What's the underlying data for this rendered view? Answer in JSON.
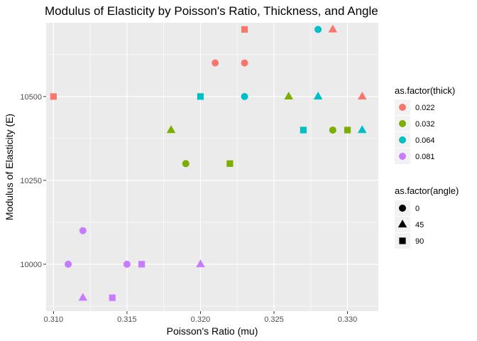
{
  "chart_data": {
    "type": "scatter",
    "title": "Modulus of Elasticity by Poisson's Ratio, Thickness, and Angle",
    "xlabel": "Poisson's Ratio (mu)",
    "ylabel": "Modulus of Elasticity (E)",
    "xlim": [
      0.3095,
      0.3321
    ],
    "ylim": [
      9860,
      10720
    ],
    "x_ticks": [
      0.31,
      0.315,
      0.32,
      0.325,
      0.33
    ],
    "x_tick_labels": [
      "0.310",
      "0.315",
      "0.320",
      "0.325",
      "0.330"
    ],
    "y_ticks": [
      10000,
      10250,
      10500
    ],
    "y_tick_labels": [
      "10000",
      "10250",
      "10500"
    ],
    "grid": true,
    "legend_placement": "right",
    "color_legend": {
      "title": "as.factor(thick)",
      "entries": [
        {
          "label": "0.022",
          "color": "#F8766D"
        },
        {
          "label": "0.032",
          "color": "#7CAE00"
        },
        {
          "label": "0.064",
          "color": "#00BFC4"
        },
        {
          "label": "0.081",
          "color": "#C77CFF"
        }
      ]
    },
    "shape_legend": {
      "title": "as.factor(angle)",
      "entries": [
        {
          "label": "0",
          "shape": "circle"
        },
        {
          "label": "45",
          "shape": "triangle"
        },
        {
          "label": "90",
          "shape": "square"
        }
      ]
    },
    "points": [
      {
        "x": 0.31,
        "y": 10500,
        "thick": "0.022",
        "angle": "90"
      },
      {
        "x": 0.321,
        "y": 10600,
        "thick": "0.022",
        "angle": "0"
      },
      {
        "x": 0.323,
        "y": 10600,
        "thick": "0.022",
        "angle": "0"
      },
      {
        "x": 0.323,
        "y": 10700,
        "thick": "0.022",
        "angle": "90"
      },
      {
        "x": 0.329,
        "y": 10700,
        "thick": "0.022",
        "angle": "45"
      },
      {
        "x": 0.331,
        "y": 10500,
        "thick": "0.022",
        "angle": "45"
      },
      {
        "x": 0.318,
        "y": 10400,
        "thick": "0.032",
        "angle": "45"
      },
      {
        "x": 0.319,
        "y": 10300,
        "thick": "0.032",
        "angle": "0"
      },
      {
        "x": 0.322,
        "y": 10300,
        "thick": "0.032",
        "angle": "90"
      },
      {
        "x": 0.326,
        "y": 10500,
        "thick": "0.032",
        "angle": "45"
      },
      {
        "x": 0.329,
        "y": 10400,
        "thick": "0.032",
        "angle": "0"
      },
      {
        "x": 0.33,
        "y": 10400,
        "thick": "0.032",
        "angle": "90"
      },
      {
        "x": 0.32,
        "y": 10500,
        "thick": "0.064",
        "angle": "90"
      },
      {
        "x": 0.323,
        "y": 10500,
        "thick": "0.064",
        "angle": "0"
      },
      {
        "x": 0.327,
        "y": 10400,
        "thick": "0.064",
        "angle": "90"
      },
      {
        "x": 0.328,
        "y": 10700,
        "thick": "0.064",
        "angle": "0"
      },
      {
        "x": 0.328,
        "y": 10500,
        "thick": "0.064",
        "angle": "45"
      },
      {
        "x": 0.331,
        "y": 10400,
        "thick": "0.064",
        "angle": "45"
      },
      {
        "x": 0.311,
        "y": 10000,
        "thick": "0.081",
        "angle": "0"
      },
      {
        "x": 0.312,
        "y": 10100,
        "thick": "0.081",
        "angle": "0"
      },
      {
        "x": 0.312,
        "y": 9900,
        "thick": "0.081",
        "angle": "45"
      },
      {
        "x": 0.314,
        "y": 9900,
        "thick": "0.081",
        "angle": "90"
      },
      {
        "x": 0.315,
        "y": 10000,
        "thick": "0.081",
        "angle": "0"
      },
      {
        "x": 0.316,
        "y": 10000,
        "thick": "0.081",
        "angle": "90"
      },
      {
        "x": 0.32,
        "y": 10000,
        "thick": "0.081",
        "angle": "45"
      }
    ]
  },
  "colors": {
    "panel_background": "#EBEBEB",
    "grid_major": "#FFFFFF",
    "legend_key_background": "#F2F2F2",
    "tick_color": "#333333"
  }
}
